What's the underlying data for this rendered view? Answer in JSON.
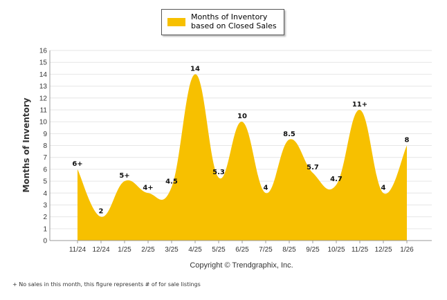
{
  "chart_data": {
    "type": "area",
    "title": "",
    "xlabel": "",
    "ylabel": "Months of Inventory",
    "ylim": [
      0,
      16
    ],
    "yticks": [
      0,
      1,
      2,
      3,
      4,
      5,
      6,
      7,
      8,
      9,
      10,
      11,
      12,
      13,
      14,
      15,
      16
    ],
    "categories": [
      "11/24",
      "12/24",
      "1/25",
      "2/25",
      "3/25",
      "4/25",
      "5/25",
      "6/25",
      "7/25",
      "8/25",
      "9/25",
      "10/25",
      "11/25",
      "12/25",
      "1/26"
    ],
    "series": [
      {
        "name": "Months of Inventory based on Closed Sales",
        "values": [
          6,
          2,
          5,
          4,
          4.5,
          14,
          5.3,
          10,
          4,
          8.5,
          5.7,
          4.7,
          11,
          4,
          8
        ],
        "labels": [
          "6+",
          "2",
          "5+",
          "4+",
          "4.5",
          "14",
          "5.3",
          "10",
          "4",
          "8.5",
          "5.7",
          "4.7",
          "11+",
          "4",
          "8"
        ]
      }
    ],
    "legend": "top-center",
    "grid": true,
    "x_axis_caption": "Copyright © Trendgraphix, Inc.",
    "footnote": "+ No sales in this month, this figure represents # of for sale listings",
    "colors": {
      "fill": "#F7C000",
      "grid": "#e6e6e6",
      "axis": "#999999"
    }
  }
}
